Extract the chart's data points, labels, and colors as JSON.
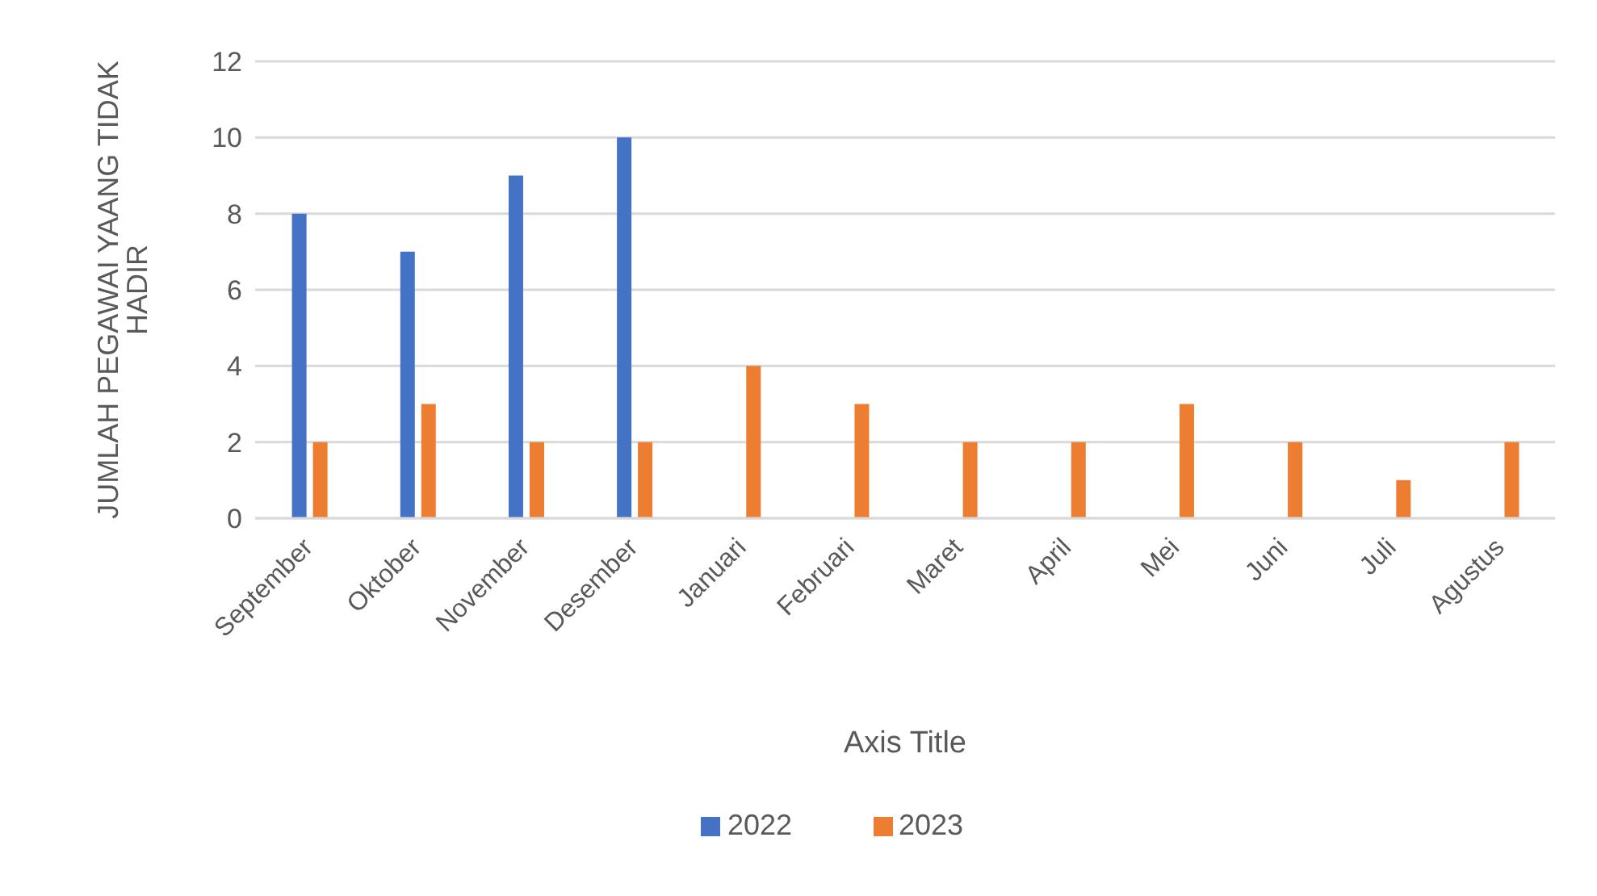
{
  "chart_data": {
    "type": "bar",
    "xlabel": "Axis Title",
    "ylabel": "JUMLAH PEGAWAI YAANG TIDAK HADIR",
    "categories": [
      "September",
      "Oktober",
      "November",
      "Desember",
      "Januari",
      "Februari",
      "Maret",
      "April",
      "Mei",
      "Juni",
      "Juli",
      "Agustus"
    ],
    "series": [
      {
        "name": "2022",
        "color": "#4472c4",
        "values": [
          8,
          7,
          9,
          10,
          null,
          null,
          null,
          null,
          null,
          null,
          null,
          null
        ]
      },
      {
        "name": "2023",
        "color": "#ed7d31",
        "values": [
          2,
          3,
          2,
          2,
          4,
          3,
          2,
          2,
          3,
          2,
          1,
          2
        ]
      }
    ],
    "ylim": [
      0,
      12
    ],
    "yticks": [
      0,
      2,
      4,
      6,
      8,
      10,
      12
    ],
    "grid": "y",
    "legend": "bottom"
  }
}
